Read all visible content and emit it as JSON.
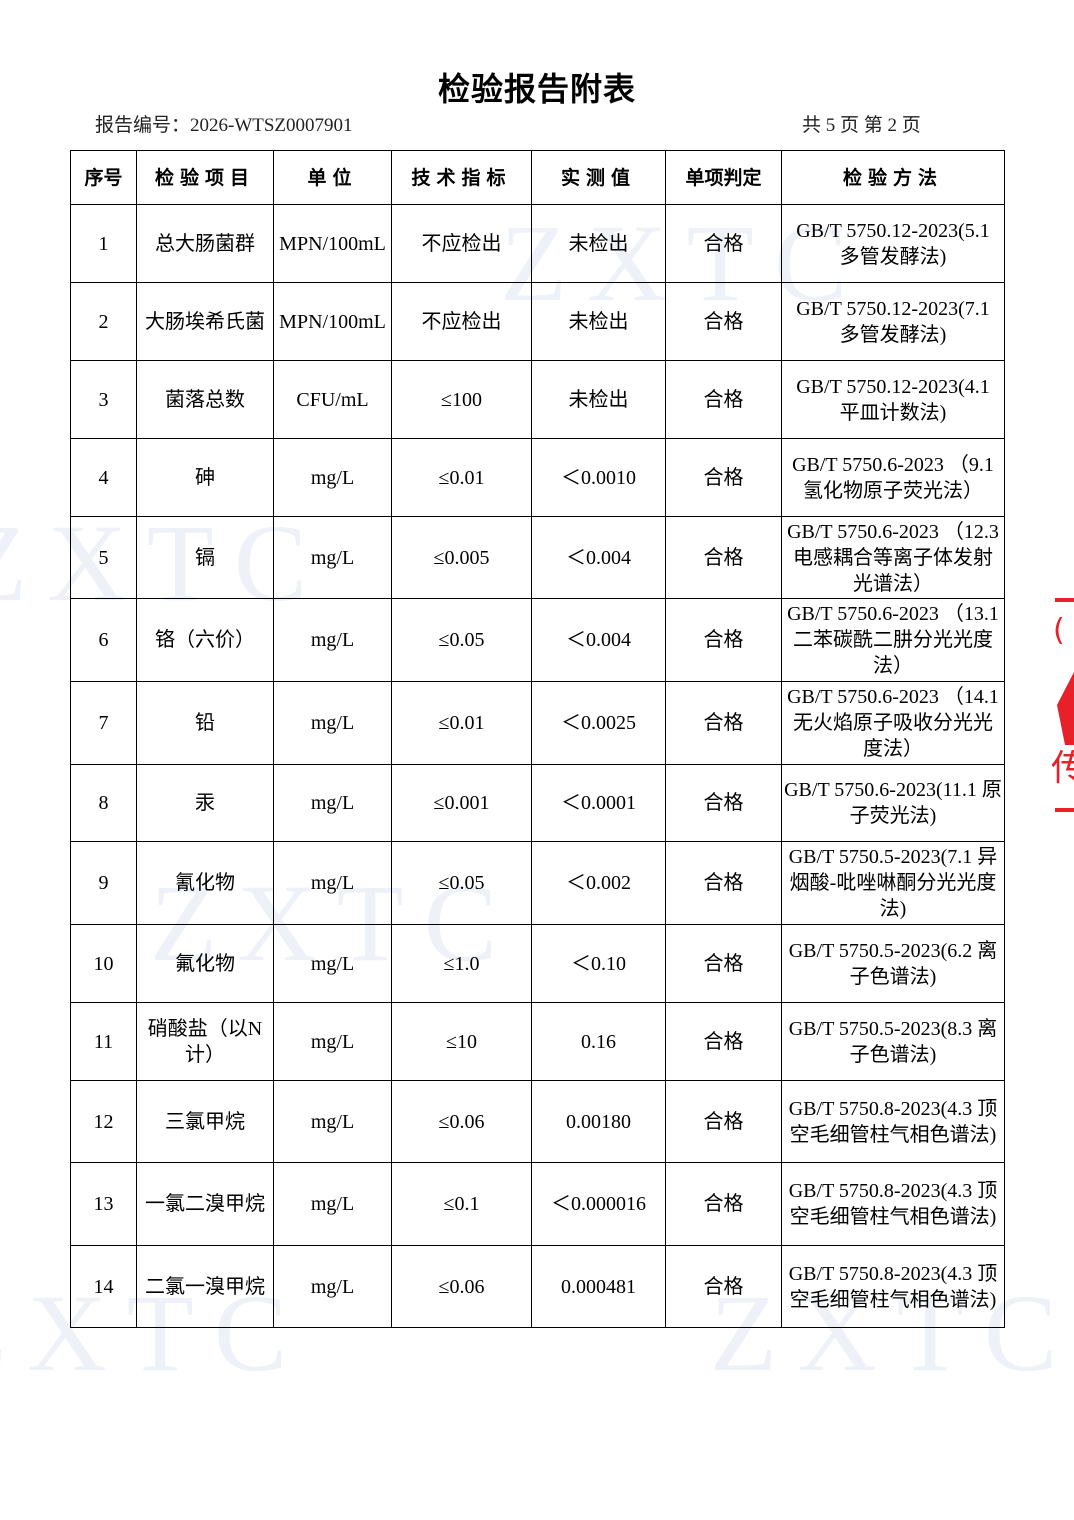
{
  "title": "检验报告附表",
  "report_no": "报告编号：2026-WTSZ0007901",
  "page_count": "共 5 页  第 2 页",
  "watermark": "ZXTC",
  "headers": [
    "序号",
    "检验项目",
    "单位",
    "技术指标",
    "实测值",
    "单项判定",
    "检验方法"
  ],
  "rows": [
    [
      "1",
      "总大肠菌群",
      "MPN/100mL",
      "不应检出",
      "未检出",
      "合格",
      "GB/T 5750.12-2023(5.1 多管发酵法)"
    ],
    [
      "2",
      "大肠埃希氏菌",
      "MPN/100mL",
      "不应检出",
      "未检出",
      "合格",
      "GB/T 5750.12-2023(7.1 多管发酵法)"
    ],
    [
      "3",
      "菌落总数",
      "CFU/mL",
      "≤100",
      "未检出",
      "合格",
      "GB/T 5750.12-2023(4.1 平皿计数法)"
    ],
    [
      "4",
      "砷",
      "mg/L",
      "≤0.01",
      "＜0.0010",
      "合格",
      "GB/T 5750.6-2023 （9.1 氢化物原子荧光法）"
    ],
    [
      "5",
      "镉",
      "mg/L",
      "≤0.005",
      "＜0.004",
      "合格",
      "GB/T 5750.6-2023 （12.3电感耦合等离子体发射光谱法）"
    ],
    [
      "6",
      "铬（六价）",
      "mg/L",
      "≤0.05",
      "＜0.004",
      "合格",
      "GB/T 5750.6-2023 （13.1 二苯碳酰二肼分光光度法）"
    ],
    [
      "7",
      "铅",
      "mg/L",
      "≤0.01",
      "＜0.0025",
      "合格",
      "GB/T 5750.6-2023 （14.1 无火焰原子吸收分光光度法）"
    ],
    [
      "8",
      "汞",
      "mg/L",
      "≤0.001",
      "＜0.0001",
      "合格",
      "GB/T 5750.6-2023(11.1 原子荧光法)"
    ],
    [
      "9",
      "氰化物",
      "mg/L",
      "≤0.05",
      "＜0.002",
      "合格",
      "GB/T 5750.5-2023(7.1 异烟酸-吡唑啉酮分光光度法)"
    ],
    [
      "10",
      "氟化物",
      "mg/L",
      "≤1.0",
      "＜0.10",
      "合格",
      "GB/T 5750.5-2023(6.2 离子色谱法)"
    ],
    [
      "11",
      "硝酸盐（以N计）",
      "mg/L",
      "≤10",
      "0.16",
      "合格",
      "GB/T 5750.5-2023(8.3 离子色谱法)"
    ],
    [
      "12",
      "三氯甲烷",
      "mg/L",
      "≤0.06",
      "0.00180",
      "合格",
      "GB/T 5750.8-2023(4.3 顶空毛细管柱气相色谱法)"
    ],
    [
      "13",
      "一氯二溴甲烷",
      "mg/L",
      "≤0.1",
      "＜0.000016",
      "合格",
      "GB/T 5750.8-2023(4.3 顶空毛细管柱气相色谱法)"
    ],
    [
      "14",
      "二氯一溴甲烷",
      "mg/L",
      "≤0.06",
      "0.000481",
      "合格",
      "GB/T 5750.8-2023(4.3 顶空毛细管柱气相色谱法)"
    ]
  ],
  "stamp_color": "#e8202a"
}
